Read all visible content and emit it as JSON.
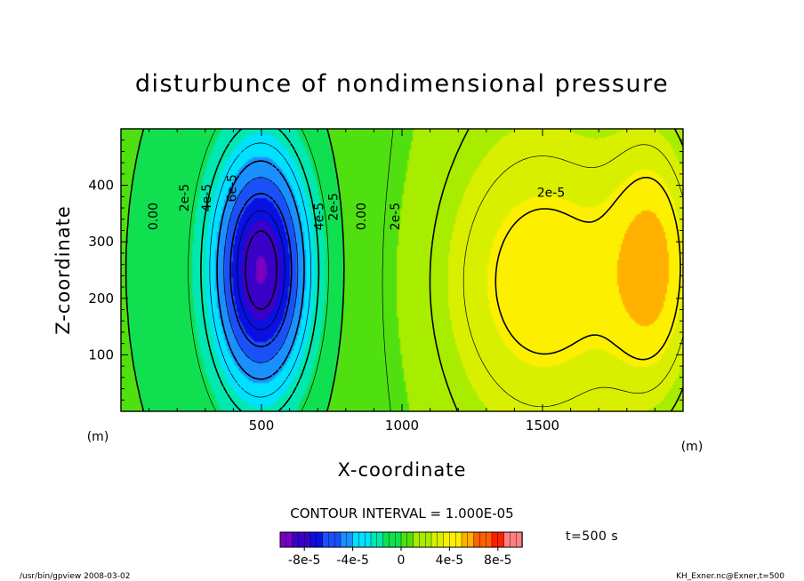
{
  "chart_data": {
    "type": "heatmap",
    "title": "disturbunce of nondimensional pressure",
    "xlabel": "X-coordinate",
    "ylabel": "Z-coordinate",
    "x_unit": "(m)",
    "y_unit": "(m)",
    "xlim": [
      0,
      2000
    ],
    "ylim": [
      0,
      500
    ],
    "x_ticks": [
      500,
      1000,
      1500
    ],
    "y_ticks": [
      100,
      200,
      300,
      400
    ],
    "contour_interval_text": "CONTOUR INTERVAL = 1.000E-05",
    "contour_labels": [
      {
        "text": "0.00",
        "x": 130,
        "y": 345
      },
      {
        "text": "2e-5",
        "x": 240,
        "y": 378
      },
      {
        "text": "4e-5",
        "x": 320,
        "y": 378
      },
      {
        "text": "6e-5",
        "x": 410,
        "y": 395
      },
      {
        "text": "2e-5",
        "x": 770,
        "y": 362
      },
      {
        "text": "4e-5",
        "x": 720,
        "y": 345
      },
      {
        "text": "0.00",
        "x": 870,
        "y": 345
      },
      {
        "text": "2e-5",
        "x": 990,
        "y": 345
      },
      {
        "text": "2e-5",
        "x": 1530,
        "y": 380
      }
    ],
    "field_features": [
      {
        "kind": "min",
        "x": 500,
        "y": 250,
        "value": -9e-05,
        "sx": 125,
        "sy": 155
      },
      {
        "kind": "max",
        "x": 1520,
        "y": 230,
        "value": 3e-05,
        "sx": 250,
        "sy": 165
      },
      {
        "kind": "max",
        "x": 1900,
        "y": 260,
        "value": 3.8e-05,
        "sx": 110,
        "sy": 160
      }
    ],
    "colorbar": {
      "range": [
        -0.0001,
        0.0001
      ],
      "tick_labels": [
        "-8e-5",
        "-4e-5",
        "0",
        "4e-5",
        "8e-5"
      ],
      "tick_values": [
        -8e-05,
        -4e-05,
        0,
        4e-05,
        8e-05
      ]
    }
  },
  "annotations": {
    "time_label": "t=500  s",
    "footer_left": "/usr/bin/gpview   2008-03-02",
    "footer_right": "KH_Exner.nc@Exner,t=500"
  },
  "colors": {
    "palette": [
      "#7a00c0",
      "#3a00c8",
      "#0a10e0",
      "#1a50f8",
      "#1a90ff",
      "#00e0ff",
      "#00e8b0",
      "#10e050",
      "#50e010",
      "#a8ec00",
      "#d8f000",
      "#fcf000",
      "#ffb000",
      "#ff6000",
      "#ff2000",
      "#ff8080"
    ]
  }
}
